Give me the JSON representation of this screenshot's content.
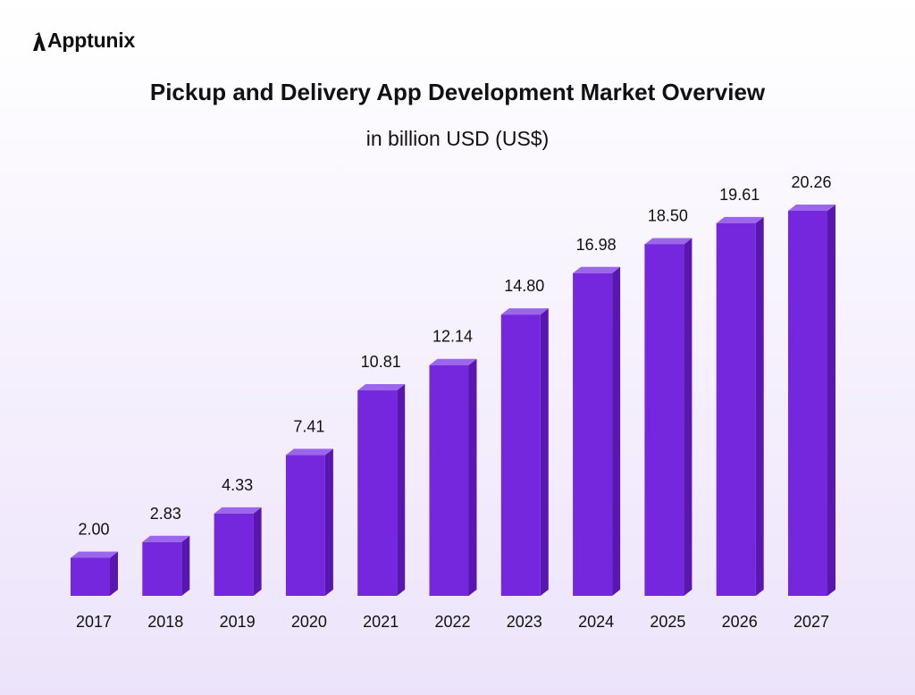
{
  "brand": {
    "name": "Apptunix"
  },
  "chart_data": {
    "type": "bar",
    "title": "Pickup and Delivery App Development Market Overview",
    "subtitle": "in billion USD (US$)",
    "categories": [
      "2017",
      "2018",
      "2019",
      "2020",
      "2021",
      "2022",
      "2023",
      "2024",
      "2025",
      "2026",
      "2027"
    ],
    "values": [
      2.0,
      2.83,
      4.33,
      7.41,
      10.81,
      12.14,
      14.8,
      16.98,
      18.5,
      19.61,
      20.26
    ],
    "value_labels": [
      "2.00",
      "2.83",
      "4.33",
      "7.41",
      "10.81",
      "12.14",
      "14.80",
      "16.98",
      "18.50",
      "19.61",
      "20.26"
    ],
    "ylim": [
      0,
      22
    ],
    "grid": false,
    "legend": "none",
    "colors": {
      "bar_front": "#7427dc",
      "bar_side": "#5a17b0",
      "bar_top": "#9c66ec"
    }
  }
}
